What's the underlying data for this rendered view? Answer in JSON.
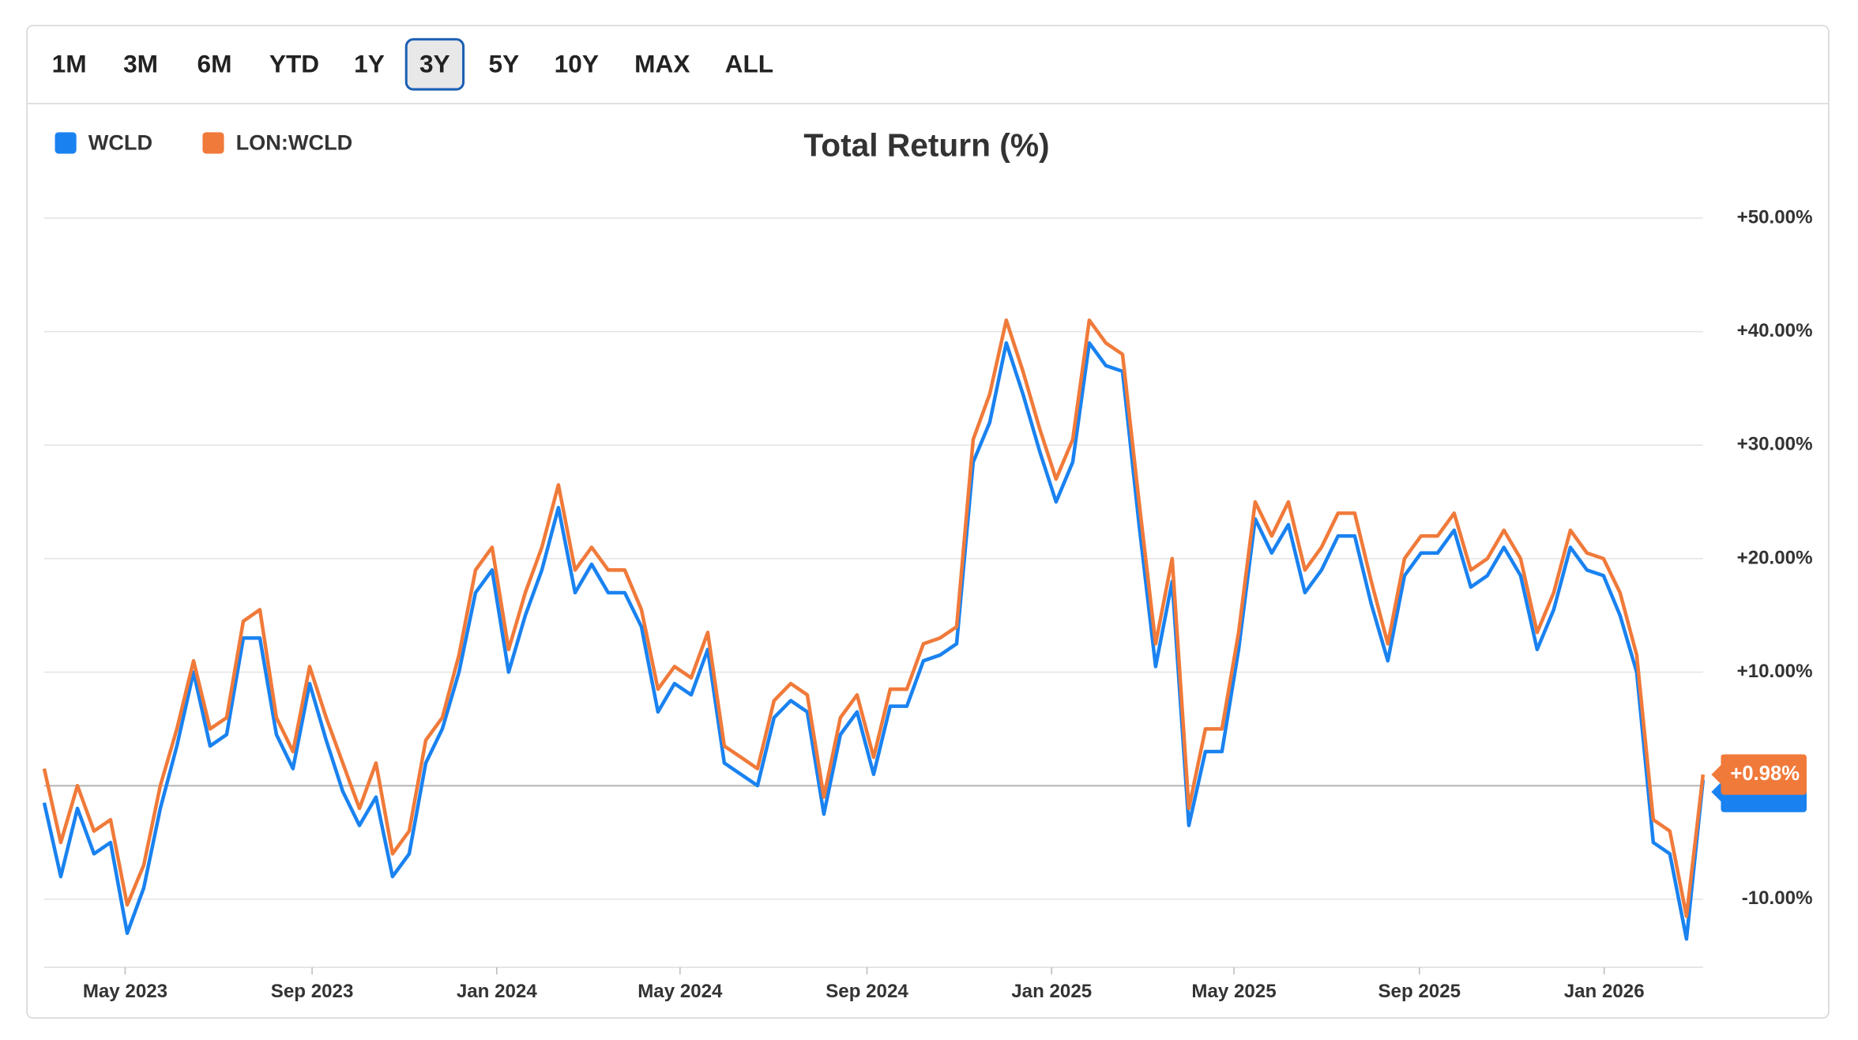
{
  "range_buttons": [
    "1M",
    "3M",
    "6M",
    "YTD",
    "1Y",
    "3Y",
    "5Y",
    "10Y",
    "MAX",
    "ALL"
  ],
  "selected_range": "3Y",
  "chart_data": {
    "type": "line",
    "title": "Total Return (%)",
    "series": [
      {
        "name": "WCLD",
        "color": "#1a82f0",
        "values": [
          -1.5,
          -8,
          -2,
          -6,
          -5,
          -13,
          -9,
          -2,
          3.5,
          10,
          3.5,
          4.5,
          13,
          13,
          4.5,
          1.5,
          9,
          4,
          -0.5,
          -3.5,
          -1,
          -8,
          -6,
          2,
          5,
          10,
          17,
          19,
          10,
          15,
          19,
          24.5,
          17,
          19.5,
          17,
          17,
          14,
          6.5,
          9,
          8,
          12,
          2,
          1,
          0,
          6,
          7.5,
          6.5,
          -2.5,
          4.5,
          6.5,
          1,
          7,
          7,
          11,
          11.5,
          12.5,
          28.5,
          32,
          39,
          34.5,
          29.5,
          25,
          28.5,
          39,
          37,
          36.5,
          23,
          10.5,
          18,
          -3.5,
          3,
          3,
          12,
          23.5,
          20.5,
          23,
          17,
          19,
          22,
          22,
          16,
          11,
          18.5,
          20.5,
          20.5,
          22.5,
          17.5,
          18.5,
          21,
          18.5,
          12,
          15.5,
          21,
          19,
          18.5,
          15,
          10,
          -5,
          -6,
          -13.5,
          0.5
        ]
      },
      {
        "name": "LON:WCLD",
        "color": "#f07a3a",
        "values": [
          1.5,
          -5,
          0,
          -4,
          -3,
          -10.5,
          -7,
          0,
          5,
          11,
          5,
          6,
          14.5,
          15.5,
          6,
          3,
          10.5,
          6,
          2,
          -2,
          2,
          -6,
          -4,
          4,
          6,
          11.5,
          19,
          21,
          12,
          17,
          21,
          26.5,
          19,
          21,
          19,
          19,
          15.5,
          8.5,
          10.5,
          9.5,
          13.5,
          3.5,
          2.5,
          1.5,
          7.5,
          9,
          8,
          -1,
          6,
          8,
          2.5,
          8.5,
          8.5,
          12.5,
          13,
          14,
          30.5,
          34.5,
          41,
          36.5,
          31.5,
          27,
          30.5,
          41,
          39,
          38,
          25,
          12.5,
          20,
          -2,
          5,
          5,
          13.5,
          25,
          22,
          25,
          19,
          21,
          24,
          24,
          18,
          12.5,
          20,
          22,
          22,
          24,
          19,
          20,
          22.5,
          20,
          13.5,
          17,
          22.5,
          20.5,
          20,
          17,
          11.5,
          -3,
          -4,
          -11.5,
          0.98
        ],
        "value_labels": [
          null,
          null,
          null,
          null,
          null,
          null,
          null,
          null,
          null,
          null,
          null,
          null,
          null,
          null,
          null,
          null,
          null,
          null,
          null,
          null,
          null,
          null,
          null,
          null,
          null,
          null,
          null,
          null,
          null,
          null,
          null,
          null,
          null,
          null,
          null,
          null,
          null,
          null,
          null,
          null,
          null,
          null,
          null,
          null,
          null,
          null,
          null,
          null,
          null,
          null,
          null,
          null,
          null,
          null,
          null,
          null,
          null,
          null,
          null,
          null,
          null,
          null,
          null,
          null,
          null,
          null,
          null,
          null,
          null,
          null,
          null,
          null,
          null,
          null,
          null,
          null,
          null,
          null,
          null,
          null,
          null,
          null,
          null,
          null,
          null,
          null,
          null,
          null,
          null,
          null,
          null,
          null,
          null,
          null,
          null,
          null,
          null,
          null,
          null,
          null,
          "+0.98%"
        ]
      }
    ],
    "xlim": [
      0,
      100
    ],
    "xticks": [
      {
        "value": 4.88,
        "label": "May 2023"
      },
      {
        "value": 16.15,
        "label": "Sep 2023"
      },
      {
        "value": 27.28,
        "label": "Jan 2024"
      },
      {
        "value": 38.33,
        "label": "May 2024"
      },
      {
        "value": 49.6,
        "label": "Sep 2024"
      },
      {
        "value": 60.73,
        "label": "Jan 2025"
      },
      {
        "value": 71.72,
        "label": "May 2025"
      },
      {
        "value": 82.9,
        "label": "Sep 2025"
      },
      {
        "value": 94.04,
        "label": "Jan 2026"
      }
    ],
    "ylim": [
      -16,
      52
    ],
    "yticks": [
      {
        "value": -10,
        "label": "-10.00%"
      },
      {
        "value": 10,
        "label": "+10.00%"
      },
      {
        "value": 20,
        "label": "+20.00%"
      },
      {
        "value": 30,
        "label": "+30.00%"
      },
      {
        "value": 40,
        "label": "+40.00%"
      },
      {
        "value": 50,
        "label": "+50.00%"
      }
    ],
    "baseline": 0,
    "grid": true,
    "legend": "top-left"
  }
}
